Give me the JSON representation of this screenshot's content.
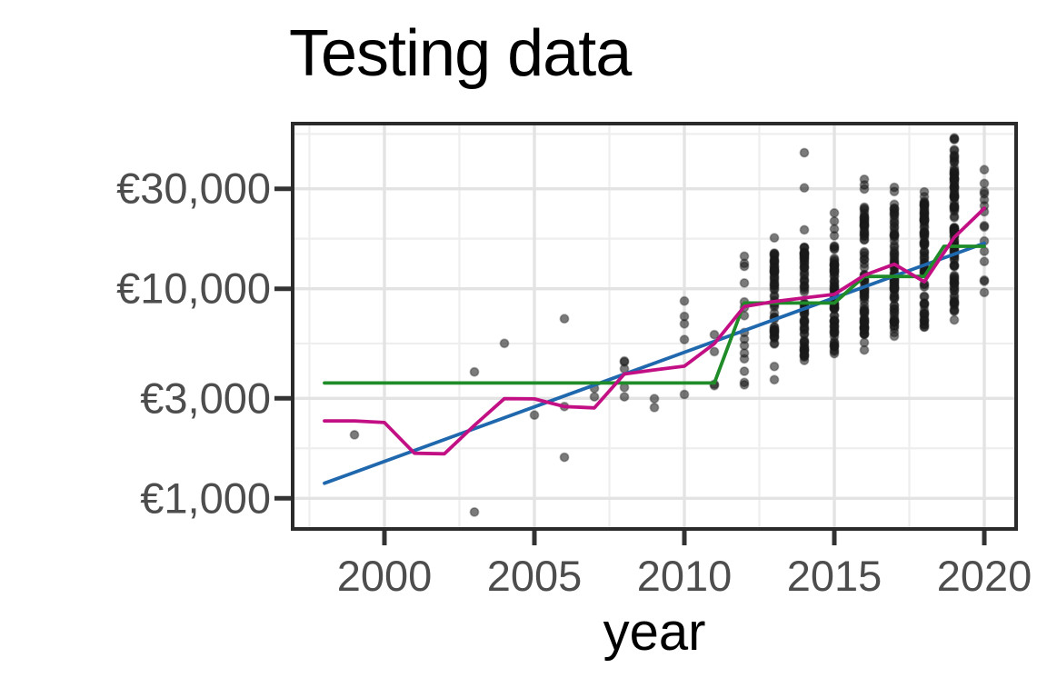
{
  "title": "Testing data",
  "x_axis": {
    "label": "year",
    "tick_labels": [
      "2000",
      "2005",
      "2010",
      "2015",
      "2020"
    ],
    "tick_values": [
      2000,
      2005,
      2010,
      2015,
      2020
    ],
    "minor_tick_values": [
      1997.5,
      2002.5,
      2007.5,
      2012.5,
      2017.5
    ],
    "range": [
      1996.94,
      2021.06
    ]
  },
  "y_axis": {
    "label": "",
    "tick_labels": [
      "€30,000",
      "€10,000",
      "€3,000",
      "€1,000"
    ],
    "tick_values": [
      30000,
      10000,
      3000,
      1000
    ],
    "minor_tick_values": [
      54790,
      17330,
      5479,
      1733
    ],
    "scale": "log10",
    "range": [
      714,
      61400
    ]
  },
  "colors": {
    "blue_line": "#2068ae",
    "green_line": "#1f8b29",
    "magenta_line": "#c21084",
    "point_fill": "#1a1a1a",
    "grid_major": "#e3e3e3",
    "grid_minor": "#eeeeee",
    "panel_border": "#2b2b2b",
    "axis_tick": "#333333",
    "tick_label_text": "#4d4d4d",
    "title_text": "#000000"
  },
  "chart_data": {
    "type": "scatter",
    "title": "Testing data",
    "xlabel": "year",
    "ylabel": "",
    "y_scale": "log10",
    "x_data_range": [
      1998,
      2020
    ],
    "points": [
      [
        1999,
        2010
      ],
      [
        2003,
        4010
      ],
      [
        2003,
        860
      ],
      [
        2004,
        5490
      ],
      [
        2005,
        2495
      ],
      [
        2006,
        7190
      ],
      [
        2006,
        2740
      ],
      [
        2006,
        1570
      ],
      [
        2007,
        3350
      ],
      [
        2007,
        3050
      ],
      [
        2008,
        4520
      ],
      [
        2008,
        4470
      ],
      [
        2008,
        4150
      ],
      [
        2008,
        3380
      ],
      [
        2008,
        3050
      ],
      [
        2009,
        2990
      ],
      [
        2009,
        2710
      ],
      [
        2010,
        8740
      ],
      [
        2010,
        7380
      ],
      [
        2010,
        6800
      ],
      [
        2010,
        5720
      ],
      [
        2010,
        3130
      ],
      [
        2011,
        6040
      ],
      [
        2011,
        5010
      ],
      [
        2011,
        3500
      ],
      [
        2011,
        3450
      ],
      [
        2012,
        14300
      ],
      [
        2012,
        13200
      ],
      [
        2012,
        12800
      ],
      [
        2012,
        10650
      ],
      [
        2012,
        8650
      ],
      [
        2012,
        8150
      ],
      [
        2012,
        7440
      ],
      [
        2012,
        6180
      ],
      [
        2012,
        5750
      ],
      [
        2012,
        5350
      ],
      [
        2012,
        4930
      ],
      [
        2012,
        4630
      ],
      [
        2012,
        4040
      ],
      [
        2012,
        3570
      ],
      [
        2012,
        3480
      ],
      [
        2013,
        17500
      ],
      [
        2013,
        4260
      ],
      [
        2013,
        3680
      ],
      [
        2014,
        44600
      ],
      [
        2014,
        30300
      ],
      [
        2014,
        19100
      ],
      [
        2015,
        23000
      ],
      [
        2015,
        21000
      ],
      [
        2015,
        19300
      ],
      [
        2015,
        17900
      ],
      [
        2015,
        4900
      ],
      [
        2016,
        33300
      ],
      [
        2016,
        31300
      ],
      [
        2016,
        29900
      ],
      [
        2016,
        5540
      ],
      [
        2016,
        5100
      ],
      [
        2017,
        30500
      ],
      [
        2017,
        29100
      ],
      [
        2018,
        29000
      ],
      [
        2018,
        27500
      ],
      [
        2019,
        7100
      ],
      [
        2020,
        37000
      ],
      [
        2020,
        31800
      ],
      [
        2020,
        29100
      ],
      [
        2020,
        28400
      ],
      [
        2020,
        26600
      ],
      [
        2020,
        24900
      ],
      [
        2020,
        23300
      ],
      [
        2020,
        20000
      ],
      [
        2020,
        19700
      ],
      [
        2020,
        16900
      ],
      [
        2020,
        15100
      ],
      [
        2020,
        13500
      ],
      [
        2020,
        11000
      ],
      [
        2020,
        10850
      ],
      [
        2020,
        9600
      ]
    ],
    "dense_columns": [
      {
        "year": 2013,
        "min": 5450,
        "max": 14800,
        "n": 55
      },
      {
        "year": 2014,
        "min": 4550,
        "max": 15800,
        "n": 70
      },
      {
        "year": 2015,
        "min": 5020,
        "max": 16000,
        "n": 70
      },
      {
        "year": 2016,
        "min": 6050,
        "max": 24500,
        "n": 80
      },
      {
        "year": 2017,
        "min": 5940,
        "max": 25300,
        "n": 80
      },
      {
        "year": 2018,
        "min": 6560,
        "max": 26100,
        "n": 80
      },
      {
        "year": 2019,
        "min": 7800,
        "max": 36000,
        "n": 95
      },
      {
        "year": 2019,
        "min": 36500,
        "max": 52500,
        "n": 14
      }
    ],
    "lines": [
      {
        "name": "blue-line",
        "color_key": "blue_line",
        "points": [
          [
            1998,
            1180
          ],
          [
            2020,
            16500
          ]
        ]
      },
      {
        "name": "green-step-line",
        "color_key": "green_line",
        "points": [
          [
            1998,
            3550
          ],
          [
            2011,
            3550
          ],
          [
            2012,
            8550
          ],
          [
            2015,
            8550
          ],
          [
            2016,
            11450
          ],
          [
            2018,
            11450
          ],
          [
            2018.65,
            15950
          ],
          [
            2020,
            15950
          ]
        ]
      },
      {
        "name": "magenta-line",
        "color_key": "magenta_line",
        "points": [
          [
            1998,
            2340
          ],
          [
            1999,
            2340
          ],
          [
            2000,
            2300
          ],
          [
            2001,
            1640
          ],
          [
            2002,
            1630
          ],
          [
            2003,
            2230
          ],
          [
            2004,
            2990
          ],
          [
            2005,
            2980
          ],
          [
            2006,
            2740
          ],
          [
            2007,
            2700
          ],
          [
            2008,
            3920
          ],
          [
            2009,
            4100
          ],
          [
            2010,
            4270
          ],
          [
            2011,
            5470
          ],
          [
            2012,
            8230
          ],
          [
            2013,
            8700
          ],
          [
            2014,
            9050
          ],
          [
            2015,
            9400
          ],
          [
            2016,
            11600
          ],
          [
            2017,
            13100
          ],
          [
            2018,
            10800
          ],
          [
            2019,
            17600
          ],
          [
            2020,
            24200
          ]
        ]
      }
    ],
    "legend": "none",
    "grid": "on"
  }
}
